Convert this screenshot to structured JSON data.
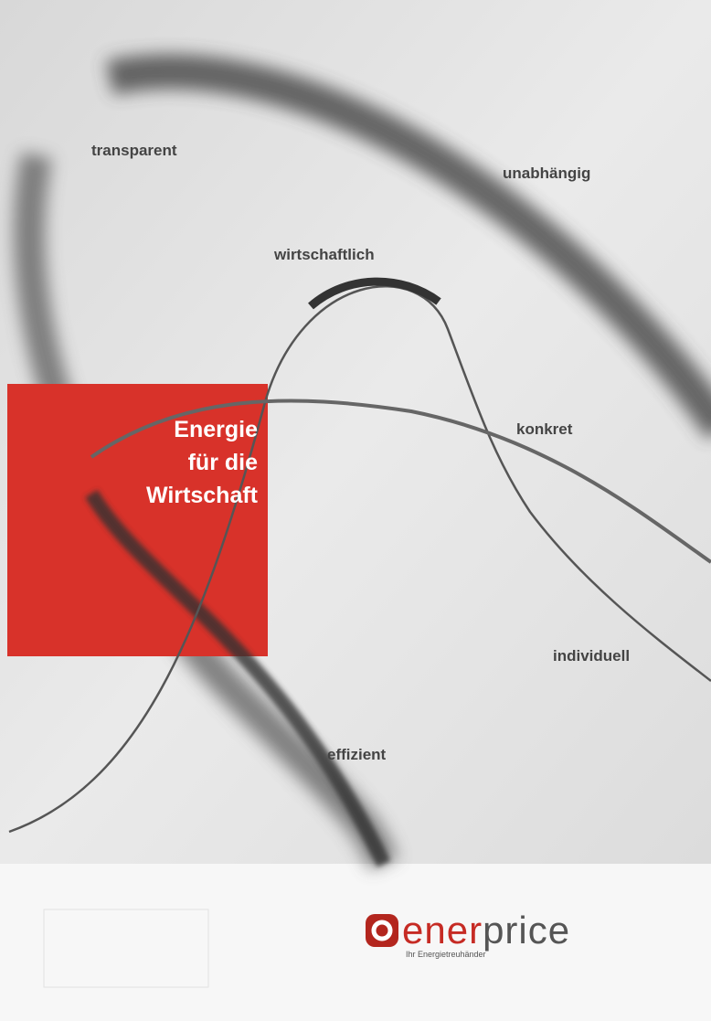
{
  "keywords": [
    "transparent",
    "unabhängig",
    "wirtschaftlich",
    "konkret",
    "individuell",
    "effizient"
  ],
  "headline": [
    "Energie",
    "für die",
    "Wirtschaft"
  ],
  "logo": {
    "name_red": "ener",
    "name_gray": "price",
    "tagline": "Ihr Energietreuhänder"
  }
}
